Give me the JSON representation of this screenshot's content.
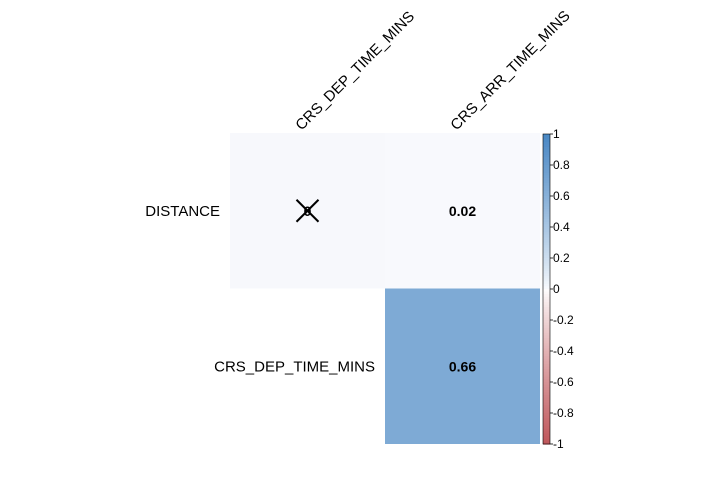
{
  "chart_data": {
    "type": "heatmap",
    "variant": "correlation-matrix-upper",
    "rows": [
      "DISTANCE",
      "CRS_DEP_TIME_MINS"
    ],
    "columns": [
      "CRS_DEP_TIME_MINS",
      "CRS_ARR_TIME_MINS"
    ],
    "cells": [
      {
        "row": "DISTANCE",
        "column": "CRS_DEP_TIME_MINS",
        "value": 0,
        "label": "0",
        "crossed_out": true
      },
      {
        "row": "DISTANCE",
        "column": "CRS_ARR_TIME_MINS",
        "value": 0.02,
        "label": "0.02",
        "crossed_out": false
      },
      {
        "row": "CRS_DEP_TIME_MINS",
        "column": "CRS_ARR_TIME_MINS",
        "value": 0.66,
        "label": "0.66",
        "crossed_out": false
      }
    ],
    "color_scale": {
      "range": [
        -1,
        1
      ],
      "ticks": [
        "1",
        "0.8",
        "0.6",
        "0.4",
        "0.2",
        "0",
        "-0.2",
        "-0.4",
        "-0.6",
        "-0.8",
        "-1"
      ],
      "tick_values": [
        1,
        0.8,
        0.6,
        0.4,
        0.2,
        0,
        -0.2,
        -0.4,
        -0.6,
        -0.8,
        -1
      ],
      "low_color": "#b2182b",
      "mid_color": "#ffffff",
      "high_color": "#2166ac"
    },
    "legend_position": "right",
    "grid": false
  }
}
